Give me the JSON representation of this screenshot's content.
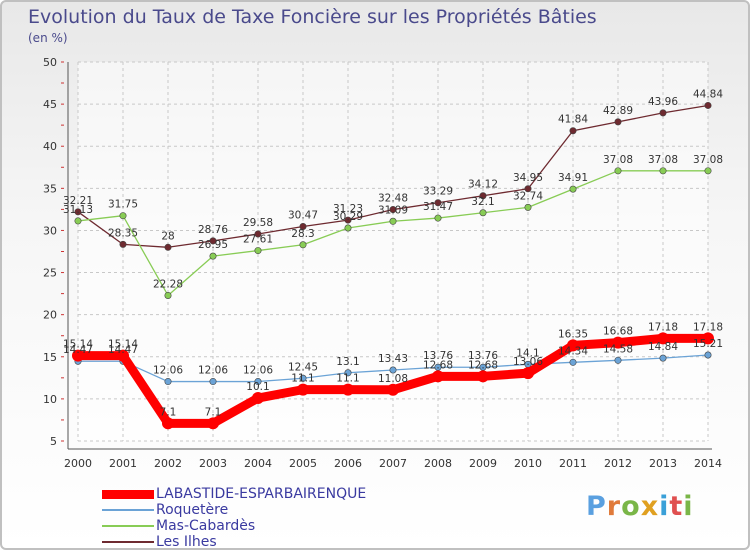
{
  "title": "Evolution du Taux de Taxe Foncière sur les Propriétés Bâties",
  "subtitle": "(en %)",
  "logo": {
    "text": "Proxiti",
    "letter_colors": [
      "#5aa0e0",
      "#e07a3a",
      "#7ab648",
      "#e0a020",
      "#3aa0d8",
      "#e05050",
      "#7ab648"
    ]
  },
  "chart_data": {
    "type": "line",
    "x": [
      "2000",
      "2001",
      "2002",
      "2003",
      "2004",
      "2005",
      "2006",
      "2007",
      "2008",
      "2009",
      "2010",
      "2011",
      "2012",
      "2013",
      "2014"
    ],
    "ylim": [
      5,
      50
    ],
    "yticks": [
      "5",
      "10",
      "15",
      "20",
      "25",
      "30",
      "35",
      "40",
      "45",
      "50"
    ],
    "grid": true,
    "legend_position": "bottom-left",
    "series": [
      {
        "name": "LABASTIDE-ESPARBAIRENQUE",
        "color": "#ff0000",
        "values": [
          15.14,
          15.14,
          7.1,
          7.1,
          10.1,
          11.1,
          11.1,
          11.08,
          12.68,
          12.68,
          13.06,
          16.35,
          16.68,
          17.18,
          17.18
        ],
        "labels": [
          "15.14",
          "15.14",
          "7.1",
          "7.1",
          "10.1",
          "11.1",
          "11.1",
          "11.08",
          "12.68",
          "12.68",
          "13.06",
          "16.35",
          "16.68",
          "17.18",
          "17.18"
        ]
      },
      {
        "name": "Roquetère",
        "color": "#6ba3d6",
        "values": [
          14.47,
          14.47,
          12.06,
          12.06,
          12.06,
          12.45,
          13.1,
          13.43,
          13.76,
          13.76,
          14.1,
          14.34,
          14.58,
          14.84,
          15.21
        ],
        "labels": [
          "14.47",
          "14.47",
          "12.06",
          "12.06",
          "12.06",
          "12.45",
          "13.1",
          "13.43",
          "13.76",
          "13.76",
          "14.1",
          "14.34",
          "14.58",
          "14.84",
          "15.21"
        ]
      },
      {
        "name": "Mas-Cabardès",
        "color": "#88cc55",
        "values": [
          31.13,
          31.75,
          22.28,
          26.95,
          27.61,
          28.3,
          30.29,
          31.09,
          31.47,
          32.1,
          32.74,
          34.91,
          37.08,
          37.08,
          37.08
        ],
        "labels": [
          "31.13",
          "31.75",
          "22.28",
          "26.95",
          "27.61",
          "28.3",
          "30.29",
          "31.09",
          "31.47",
          "32.1",
          "32.74",
          "34.91",
          "37.08",
          "37.08",
          "37.08"
        ]
      },
      {
        "name": "Les Ilhes",
        "color": "#6e2a30",
        "values": [
          32.21,
          28.35,
          28,
          28.76,
          29.58,
          30.47,
          31.23,
          32.48,
          33.29,
          34.12,
          34.95,
          41.84,
          42.89,
          43.96,
          44.84
        ],
        "labels": [
          "32.21",
          "28.35",
          "28",
          "28.76",
          "29.58",
          "30.47",
          "31.23",
          "32.48",
          "33.29",
          "34.12",
          "34.95",
          "41.84",
          "42.89",
          "43.96",
          "44.84"
        ]
      }
    ]
  }
}
